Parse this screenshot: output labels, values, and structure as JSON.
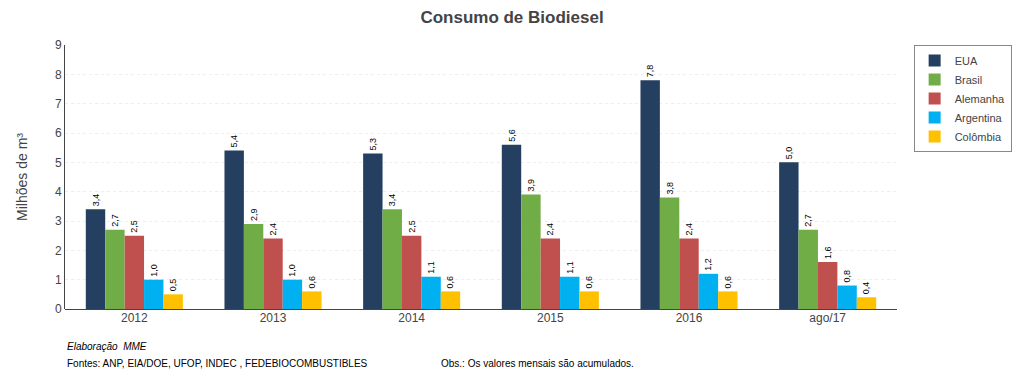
{
  "chart_data": {
    "type": "bar",
    "title": "Consumo de Biodiesel",
    "y_label": "Milhões de m³",
    "categories": [
      "2012",
      "2013",
      "2014",
      "2015",
      "2016",
      "ago/17"
    ],
    "series": [
      {
        "name": "EUA",
        "color": "#243f60",
        "values": [
          3.4,
          5.4,
          5.3,
          5.6,
          7.8,
          5.0
        ],
        "value_labels": [
          "3,4",
          "5,4",
          "5,3",
          "5,6",
          "7,8",
          "5,0"
        ]
      },
      {
        "name": "Brasil",
        "color": "#70ad47",
        "values": [
          2.7,
          2.9,
          3.4,
          3.9,
          3.8,
          2.7
        ],
        "value_labels": [
          "2,7",
          "2,9",
          "3,4",
          "3,9",
          "3,8",
          "2,7"
        ]
      },
      {
        "name": "Alemanha",
        "color": "#c0504d",
        "values": [
          2.5,
          2.4,
          2.5,
          2.4,
          2.4,
          1.6
        ],
        "value_labels": [
          "2,5",
          "2,4",
          "2,5",
          "2,4",
          "2,4",
          "1,6"
        ]
      },
      {
        "name": "Argentina",
        "color": "#00b0f0",
        "values": [
          1.0,
          1.0,
          1.1,
          1.1,
          1.2,
          0.8
        ],
        "value_labels": [
          "1,0",
          "1,0",
          "1,1",
          "1,1",
          "1,2",
          "0,8"
        ]
      },
      {
        "name": "Colômbia",
        "color": "#ffc000",
        "values": [
          0.5,
          0.6,
          0.6,
          0.6,
          0.6,
          0.4
        ],
        "value_labels": [
          "0,5",
          "0,6",
          "0,6",
          "0,6",
          "0,6",
          "0,4"
        ]
      }
    ],
    "ylim": [
      0,
      9
    ],
    "yticks": [
      0,
      1,
      2,
      3,
      4,
      5,
      6,
      7,
      8,
      9
    ],
    "grid": true,
    "legend": "upper right",
    "data_labels": true,
    "annotations": [
      "Elaboração  MME",
      "Fontes: ANP, EIA/DOE, UFOP, INDEC , FEDEBIOCOMBUSTIBLES",
      "Obs.: Os valores mensais são acumulados."
    ]
  }
}
